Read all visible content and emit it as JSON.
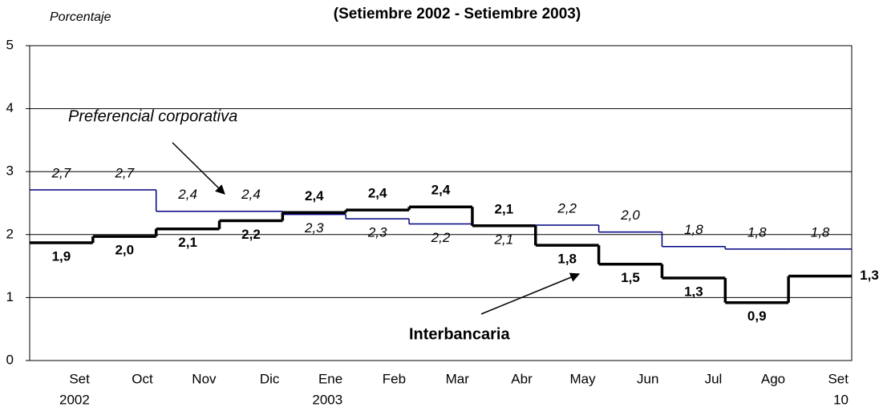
{
  "chart_data": {
    "type": "step-line",
    "title": "(Setiembre 2002 - Setiembre 2003)",
    "y_label": "Porcentaje",
    "categories": [
      "Set",
      "Oct",
      "Nov",
      "Dic",
      "Ene",
      "Feb",
      "Mar",
      "Abr",
      "May",
      "Jun",
      "Jul",
      "Ago",
      "Set"
    ],
    "category_sublabels": [
      "2002",
      null,
      null,
      null,
      "2003",
      null,
      null,
      null,
      null,
      null,
      null,
      null,
      "10"
    ],
    "ylim": [
      0,
      5
    ],
    "yticks": [
      0,
      1,
      2,
      3,
      4,
      5
    ],
    "grid": true,
    "series": [
      {
        "name": "Preferencial corporativa",
        "color": "#000080",
        "values": [
          2.71,
          2.71,
          2.37,
          2.37,
          2.32,
          2.25,
          2.17,
          2.14,
          2.15,
          2.04,
          1.81,
          1.77,
          1.77
        ],
        "value_labels": [
          "2,7",
          "2,7",
          "2,4",
          "2,4",
          "2,3",
          "2,3",
          "2,2",
          "2,1",
          "2,2",
          "2,0",
          "1,8",
          "1,8",
          "1,8"
        ]
      },
      {
        "name": "Interbancaria",
        "color": "#000000",
        "values": [
          1.87,
          1.97,
          2.09,
          2.22,
          2.35,
          2.39,
          2.44,
          2.14,
          1.83,
          1.53,
          1.31,
          0.92,
          1.34
        ],
        "value_labels": [
          "1,9",
          "2,0",
          "2,1",
          "2,2",
          "2,4",
          "2,4",
          "2,4",
          "2,1",
          "1,8",
          "1,5",
          "1,3",
          "0,9",
          "1,3"
        ]
      }
    ]
  }
}
